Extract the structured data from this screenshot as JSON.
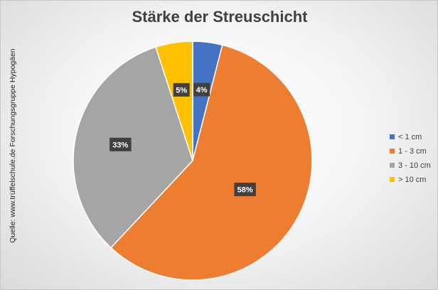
{
  "source_note": "Quelle: www.trüffelschule.de Forschungsgruppe Hypogäen",
  "chart_data": {
    "type": "pie",
    "title": "Stärke der Streuschicht",
    "categories": [
      "< 1 cm",
      "1 - 3 cm",
      "3 - 10 cm",
      "> 10 cm"
    ],
    "values": [
      4,
      58,
      33,
      5
    ],
    "data_labels": [
      "4%",
      "58%",
      "33%",
      "5%"
    ],
    "colors": [
      "#4472C4",
      "#ED7D31",
      "#A5A5A5",
      "#FFC000"
    ],
    "legend_position": "right"
  }
}
